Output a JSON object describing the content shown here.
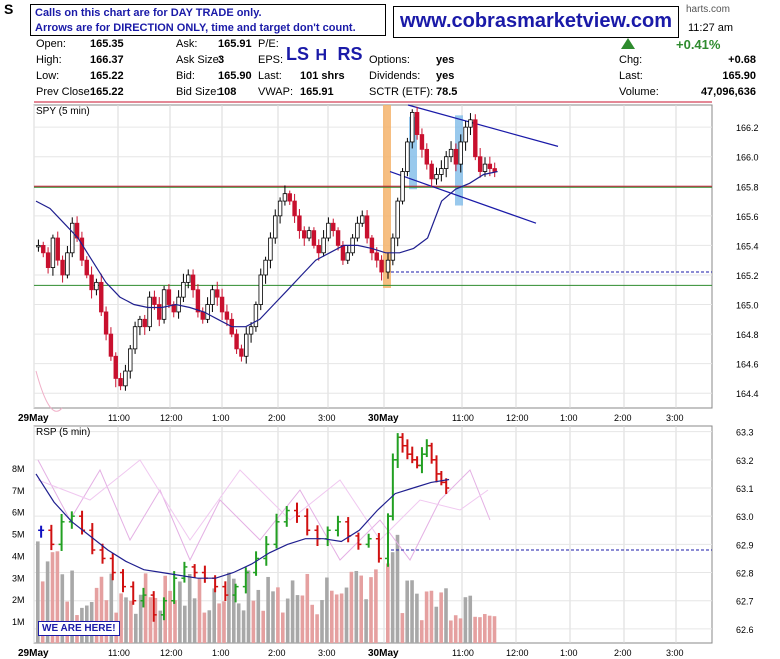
{
  "header": {
    "ticker_fragment": "S",
    "charts_fragment": "harts.com",
    "time": "11:27 am",
    "pct_change": "+0.41%",
    "notice_line1": "Calls on this chart are for DAY TRADE only.",
    "notice_line2": "Arrows are for DIRECTION ONLY, time and target don't count.",
    "site_url": "www.cobrasmarketview.com",
    "pattern_labels": [
      "LS",
      "H",
      "RS"
    ],
    "stats": [
      {
        "label": "Open:",
        "value": "165.35"
      },
      {
        "label": "High:",
        "value": "166.37"
      },
      {
        "label": "Low:",
        "value": "165.22"
      },
      {
        "label": "Prev Close:",
        "value": "165.22"
      },
      {
        "label": "Ask:",
        "value": "165.91"
      },
      {
        "label": "Ask Size:",
        "value": "3"
      },
      {
        "label": "Bid:",
        "value": "165.90"
      },
      {
        "label": "Bid Size:",
        "value": "108"
      },
      {
        "label": "P/E:",
        "value": ""
      },
      {
        "label": "EPS:",
        "value": ""
      },
      {
        "label": "Last:",
        "value": "101 shrs"
      },
      {
        "label": "VWAP:",
        "value": "165.91"
      },
      {
        "label": "Options:",
        "value": "yes"
      },
      {
        "label": "Dividends:",
        "value": "yes"
      },
      {
        "label": "SCTR (ETF):",
        "value": "78.5"
      },
      {
        "label": "Chg:",
        "value": "+0.68"
      },
      {
        "label": "Last:",
        "value": "165.90"
      },
      {
        "label": "Volume:",
        "value": "47,096,636"
      }
    ],
    "up_color": "#2e8b2e"
  },
  "chart_data": [
    {
      "type": "bar",
      "title": "SPY (5 min)",
      "ylim": [
        164.3,
        166.35
      ],
      "y_ticks": [
        "166.2",
        "166.0",
        "165.8",
        "165.6",
        "165.4",
        "165.2",
        "165.0",
        "164.8",
        "164.6",
        "164.4"
      ],
      "x_tick_labels": [
        "29May",
        "11:00",
        "12:00",
        "1:00",
        "2:00",
        "3:00",
        "30May",
        "11:00",
        "12:00",
        "1:00",
        "2:00",
        "3:00"
      ],
      "closes_day1": [
        165.4,
        165.35,
        165.25,
        165.45,
        165.3,
        165.2,
        165.35,
        165.55,
        165.45,
        165.3,
        165.2,
        165.1,
        165.15,
        164.95,
        164.8,
        164.65,
        164.5,
        164.45,
        164.55,
        164.7,
        164.85,
        164.9,
        164.85,
        165.05,
        165.0,
        164.9,
        165.1,
        165.0,
        164.95,
        165.05,
        165.15,
        165.2,
        165.1,
        164.95,
        164.9,
        165.0,
        165.1,
        165.05,
        164.95,
        164.9,
        164.8,
        164.7,
        164.65,
        164.8,
        164.85,
        165.0,
        165.2,
        165.3,
        165.45,
        165.6,
        165.7,
        165.75,
        165.7,
        165.6,
        165.5,
        165.45,
        165.5,
        165.4,
        165.35,
        165.45,
        165.55,
        165.5,
        165.4,
        165.3,
        165.35,
        165.45,
        165.55,
        165.6,
        165.45,
        165.35,
        165.3,
        165.22
      ],
      "closes_day2": [
        165.3,
        165.45,
        165.7,
        165.9,
        166.1,
        166.3,
        166.15,
        166.05,
        165.95,
        165.85,
        165.88,
        165.92,
        166.0,
        166.05,
        165.95,
        166.1,
        166.2,
        166.25,
        166.0,
        165.9,
        165.95,
        165.92,
        165.9
      ],
      "ma_closes": [
        165.7,
        165.65,
        165.55,
        165.45,
        165.3,
        165.15,
        165.05,
        165.0,
        164.98,
        164.98,
        165.0,
        164.98,
        164.95,
        164.9,
        164.85,
        164.85,
        164.9,
        165.0,
        165.1,
        165.2,
        165.3,
        165.35,
        165.4,
        165.4,
        165.38,
        165.35,
        165.35,
        165.38,
        165.45,
        165.7,
        165.78,
        165.82,
        165.88,
        165.9
      ],
      "resistance_lines": [
        166.37,
        165.8
      ],
      "support_lines": [
        165.8,
        165.13
      ],
      "dashed_level": 165.22,
      "channel_upper": [
        [
          166.35,
          166.07
        ]
      ],
      "channel_lower": [
        [
          165.9,
          165.55
        ]
      ],
      "colors": {
        "up": "#000000",
        "down": "#c8102e",
        "ma": "#1f1f8f",
        "highlight_orange": "#f5b36b",
        "highlight_blue": "#7fbbe8"
      }
    },
    {
      "type": "bar",
      "title": "RSP (5 min)",
      "ylim": [
        62.55,
        63.32
      ],
      "y_ticks": [
        "63.3",
        "63.2",
        "63.1",
        "63.0",
        "62.9",
        "62.8",
        "62.7",
        "62.6"
      ],
      "volume_ticks": [
        "8M",
        "7M",
        "6M",
        "5M",
        "4M",
        "3M",
        "2M",
        "1M"
      ],
      "x_tick_labels": [
        "29May",
        "11:00",
        "12:00",
        "1:00",
        "2:00",
        "3:00",
        "30May",
        "11:00",
        "12:00",
        "1:00",
        "2:00",
        "3:00"
      ],
      "closes_day1": [
        62.95,
        62.9,
        62.98,
        63.0,
        62.95,
        62.88,
        62.85,
        62.8,
        62.75,
        62.7,
        62.72,
        62.65,
        62.7,
        62.78,
        62.82,
        62.8,
        62.78,
        62.75,
        62.72,
        62.75,
        62.8,
        62.85,
        62.9,
        62.98,
        63.02,
        63.0,
        62.95,
        62.92,
        62.95,
        62.98,
        62.93,
        62.9,
        62.92,
        62.85
      ],
      "closes_day2": [
        63.0,
        63.2,
        63.28,
        63.25,
        63.22,
        63.2,
        63.18,
        63.22,
        63.25,
        63.2,
        63.15,
        63.12,
        63.1
      ],
      "ma_closes": [
        63.15,
        63.05,
        62.98,
        62.93,
        62.88,
        62.84,
        62.81,
        62.8,
        62.79,
        62.78,
        62.78,
        62.8,
        62.83,
        62.87,
        62.9,
        62.92,
        62.92,
        62.91,
        62.95,
        63.02,
        63.08,
        63.1,
        63.12,
        63.13
      ],
      "dashed_level": 62.88,
      "volume_note": "WE ARE HERE!",
      "colors": {
        "up": "#22a022",
        "neutral": "#1010c0",
        "down": "#d01010",
        "volume": "#a8a8a8",
        "volume_down": "#e5a0a0"
      }
    }
  ]
}
